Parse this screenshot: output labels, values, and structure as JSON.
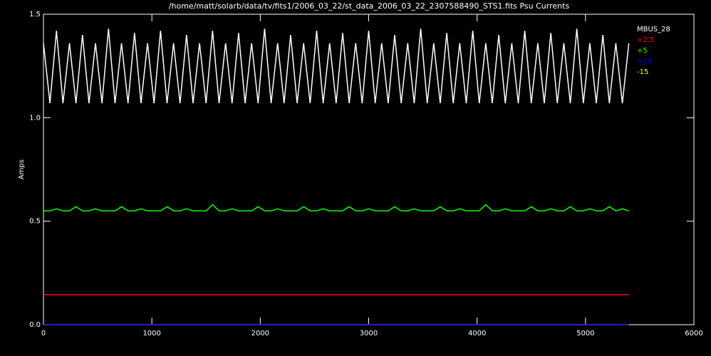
{
  "chart_data": {
    "type": "line",
    "title": "/home/matt/solarb/data/tv/fits1/2006_03_22/st_data_2006_03_22_2307588490_STS1.fits Psu Currents",
    "ylabel": "Amps",
    "x": [
      0,
      60,
      120,
      180,
      240,
      300,
      360,
      420,
      480,
      540,
      600,
      660,
      720,
      780,
      840,
      900,
      960,
      1020,
      1080,
      1140,
      1200,
      1260,
      1320,
      1380,
      1440,
      1500,
      1560,
      1620,
      1680,
      1740,
      1800,
      1860,
      1920,
      1980,
      2040,
      2100,
      2160,
      2220,
      2280,
      2340,
      2400,
      2460,
      2520,
      2580,
      2640,
      2700,
      2760,
      2820,
      2880,
      2940,
      3000,
      3060,
      3120,
      3180,
      3240,
      3300,
      3360,
      3420,
      3480,
      3540,
      3600,
      3660,
      3720,
      3780,
      3840,
      3900,
      3960,
      4020,
      4080,
      4140,
      4200,
      4260,
      4320,
      4380,
      4440,
      4500,
      4560,
      4620,
      4680,
      4740,
      4800,
      4860,
      4920,
      4980,
      5040,
      5100,
      5160,
      5220,
      5280,
      5340,
      5400
    ],
    "series": [
      {
        "name": "MBUS_28",
        "color": "#ffffff",
        "values": [
          1.36,
          1.07,
          1.42,
          1.07,
          1.36,
          1.07,
          1.4,
          1.07,
          1.36,
          1.07,
          1.43,
          1.07,
          1.36,
          1.07,
          1.41,
          1.07,
          1.36,
          1.07,
          1.42,
          1.07,
          1.36,
          1.07,
          1.4,
          1.07,
          1.36,
          1.07,
          1.42,
          1.07,
          1.36,
          1.07,
          1.41,
          1.07,
          1.36,
          1.07,
          1.43,
          1.07,
          1.36,
          1.07,
          1.4,
          1.07,
          1.36,
          1.07,
          1.42,
          1.07,
          1.36,
          1.07,
          1.41,
          1.07,
          1.36,
          1.07,
          1.42,
          1.07,
          1.36,
          1.07,
          1.4,
          1.07,
          1.36,
          1.07,
          1.43,
          1.07,
          1.36,
          1.07,
          1.41,
          1.07,
          1.36,
          1.07,
          1.42,
          1.07,
          1.36,
          1.07,
          1.4,
          1.07,
          1.36,
          1.07,
          1.42,
          1.07,
          1.36,
          1.07,
          1.41,
          1.07,
          1.36,
          1.07,
          1.43,
          1.07,
          1.36,
          1.07,
          1.4,
          1.07,
          1.36,
          1.07,
          1.36
        ]
      },
      {
        "name": "+2.5",
        "color": "#ff0000",
        "values": [
          0.145,
          0.145,
          0.145,
          0.145,
          0.145,
          0.145,
          0.145,
          0.145,
          0.145,
          0.145,
          0.145,
          0.145,
          0.145,
          0.145,
          0.145,
          0.145,
          0.145,
          0.145,
          0.145,
          0.145,
          0.145,
          0.145,
          0.145,
          0.145,
          0.145,
          0.145,
          0.145,
          0.145,
          0.145,
          0.145,
          0.145,
          0.145,
          0.145,
          0.145,
          0.145,
          0.145,
          0.145,
          0.145,
          0.145,
          0.145,
          0.145,
          0.145,
          0.145,
          0.145,
          0.145,
          0.145,
          0.145,
          0.145,
          0.145,
          0.145,
          0.145,
          0.145,
          0.145,
          0.145,
          0.145,
          0.145,
          0.145,
          0.145,
          0.145,
          0.145,
          0.145,
          0.145,
          0.145,
          0.145,
          0.145,
          0.145,
          0.145,
          0.145,
          0.145,
          0.145,
          0.145,
          0.145,
          0.145,
          0.145,
          0.145,
          0.145,
          0.145,
          0.145,
          0.145,
          0.145,
          0.145,
          0.145,
          0.145,
          0.145,
          0.145,
          0.145,
          0.145,
          0.145,
          0.145,
          0.145,
          0.145
        ]
      },
      {
        "name": "+5",
        "color": "#00ff00",
        "values": [
          0.55,
          0.55,
          0.56,
          0.55,
          0.55,
          0.57,
          0.55,
          0.55,
          0.56,
          0.55,
          0.55,
          0.55,
          0.57,
          0.55,
          0.55,
          0.56,
          0.55,
          0.55,
          0.55,
          0.57,
          0.55,
          0.55,
          0.56,
          0.55,
          0.55,
          0.55,
          0.58,
          0.55,
          0.55,
          0.56,
          0.55,
          0.55,
          0.55,
          0.57,
          0.55,
          0.55,
          0.56,
          0.55,
          0.55,
          0.55,
          0.57,
          0.55,
          0.55,
          0.56,
          0.55,
          0.55,
          0.55,
          0.57,
          0.55,
          0.55,
          0.56,
          0.55,
          0.55,
          0.55,
          0.57,
          0.55,
          0.55,
          0.56,
          0.55,
          0.55,
          0.55,
          0.57,
          0.55,
          0.55,
          0.56,
          0.55,
          0.55,
          0.55,
          0.58,
          0.55,
          0.55,
          0.56,
          0.55,
          0.55,
          0.55,
          0.57,
          0.55,
          0.55,
          0.56,
          0.55,
          0.55,
          0.57,
          0.55,
          0.55,
          0.56,
          0.55,
          0.55,
          0.57,
          0.55,
          0.56,
          0.55
        ]
      },
      {
        "name": "+15",
        "color": "#0000ff",
        "values": [
          0,
          0,
          0,
          0,
          0,
          0,
          0,
          0,
          0,
          0,
          0,
          0,
          0,
          0,
          0,
          0,
          0,
          0,
          0,
          0,
          0,
          0,
          0,
          0,
          0,
          0,
          0,
          0,
          0,
          0,
          0,
          0,
          0,
          0,
          0,
          0,
          0,
          0,
          0,
          0,
          0,
          0,
          0,
          0,
          0,
          0,
          0,
          0,
          0,
          0,
          0,
          0,
          0,
          0,
          0,
          0,
          0,
          0,
          0,
          0,
          0,
          0,
          0,
          0,
          0,
          0,
          0,
          0,
          0,
          0,
          0,
          0,
          0,
          0,
          0,
          0,
          0,
          0,
          0,
          0,
          0,
          0,
          0,
          0,
          0,
          0,
          0,
          0,
          0,
          0,
          0
        ]
      },
      {
        "name": "-15",
        "color": "#ffff00",
        "values": [
          0,
          0,
          0,
          0,
          0,
          0,
          0,
          0,
          0,
          0,
          0,
          0,
          0,
          0,
          0,
          0,
          0,
          0,
          0,
          0,
          0,
          0,
          0,
          0,
          0,
          0,
          0,
          0,
          0,
          0,
          0,
          0,
          0,
          0,
          0,
          0,
          0,
          0,
          0,
          0,
          0,
          0,
          0,
          0,
          0,
          0,
          0,
          0,
          0,
          0,
          0,
          0,
          0,
          0,
          0,
          0,
          0,
          0,
          0,
          0,
          0,
          0,
          0,
          0,
          0,
          0,
          0,
          0,
          0,
          0,
          0,
          0,
          0,
          0,
          0,
          0,
          0,
          0,
          0,
          0,
          0,
          0,
          0,
          0,
          0,
          0,
          0,
          0,
          0,
          0,
          0
        ]
      }
    ],
    "xlim": [
      0,
      6000
    ],
    "xticks": [
      0,
      1000,
      2000,
      3000,
      4000,
      5000,
      6000
    ],
    "ylim": [
      0,
      1.5
    ],
    "yticks": [
      {
        "value": 0,
        "label": "0.0"
      },
      0.5,
      {
        "value": 1,
        "label": "1.0"
      },
      1.5
    ],
    "legend": "top-right"
  }
}
